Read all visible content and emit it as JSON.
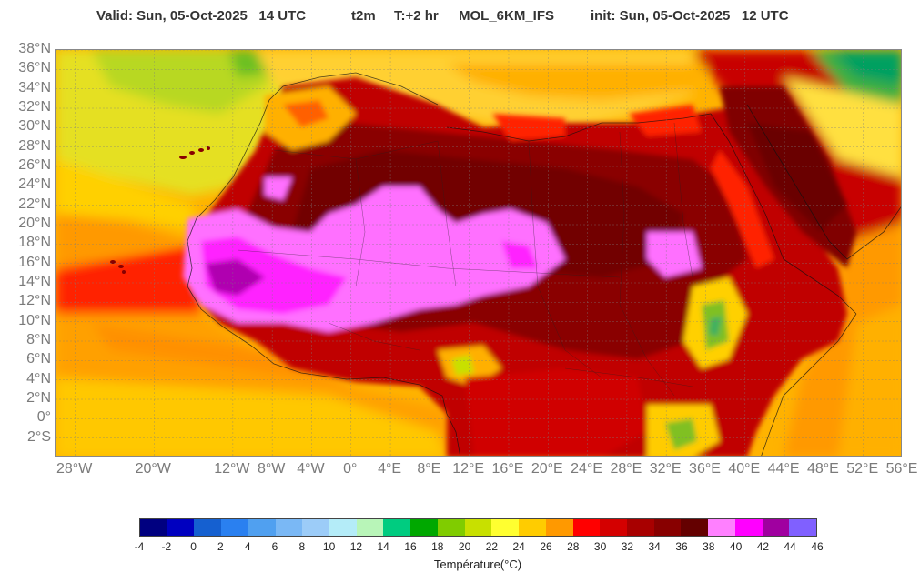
{
  "header": {
    "valid": "Valid: Sun, 05-Oct-2025   14 UTC",
    "param": "t2m",
    "offset": "T:+2 hr",
    "model": "MOL_6KM_IFS",
    "init": "init: Sun, 05-Oct-2025   12 UTC"
  },
  "map": {
    "variable": "2 m temperature",
    "extent_lon": [
      -30,
      56
    ],
    "extent_lat": [
      -4,
      38
    ],
    "lat_labels": [
      "38°N",
      "36°N",
      "34°N",
      "32°N",
      "30°N",
      "28°N",
      "26°N",
      "24°N",
      "22°N",
      "20°N",
      "18°N",
      "16°N",
      "14°N",
      "12°N",
      "10°N",
      "8°N",
      "6°N",
      "4°N",
      "2°N",
      "0°",
      "2°S"
    ],
    "lon_labels": [
      "28°W",
      "20°W",
      "12°W",
      "8°W",
      "4°W",
      "0°",
      "4°E",
      "8°E",
      "12°E",
      "16°E",
      "20°E",
      "24°E",
      "28°E",
      "32°E",
      "36°E",
      "40°E",
      "44°E",
      "48°E",
      "52°E",
      "56°E"
    ],
    "lat_values": [
      38,
      36,
      34,
      32,
      30,
      28,
      26,
      24,
      22,
      20,
      18,
      16,
      14,
      12,
      10,
      8,
      6,
      4,
      2,
      0,
      -2
    ],
    "lon_values": [
      -28,
      -20,
      -12,
      -8,
      -4,
      0,
      4,
      8,
      12,
      16,
      20,
      24,
      28,
      32,
      36,
      40,
      44,
      48,
      52,
      56
    ]
  },
  "colorbar": {
    "title": "Température(°C)",
    "ticks": [
      "-4",
      "-2",
      "0",
      "2",
      "4",
      "6",
      "8",
      "10",
      "12",
      "14",
      "16",
      "18",
      "20",
      "22",
      "24",
      "26",
      "28",
      "30",
      "32",
      "34",
      "36",
      "38",
      "40",
      "42",
      "44",
      "46"
    ],
    "colors": [
      "#000080",
      "#0000c0",
      "#1560d0",
      "#2a80f0",
      "#50a0f0",
      "#7ab8f5",
      "#9cccf8",
      "#b4ecf8",
      "#b8f5b8",
      "#00cc80",
      "#00a800",
      "#80cc00",
      "#c8e000",
      "#ffff30",
      "#ffcc00",
      "#ff9900",
      "#ff0000",
      "#d40000",
      "#a80000",
      "#880000",
      "#640000",
      "#ff80ff",
      "#ff00ff",
      "#a000a0",
      "#8060ff"
    ]
  }
}
